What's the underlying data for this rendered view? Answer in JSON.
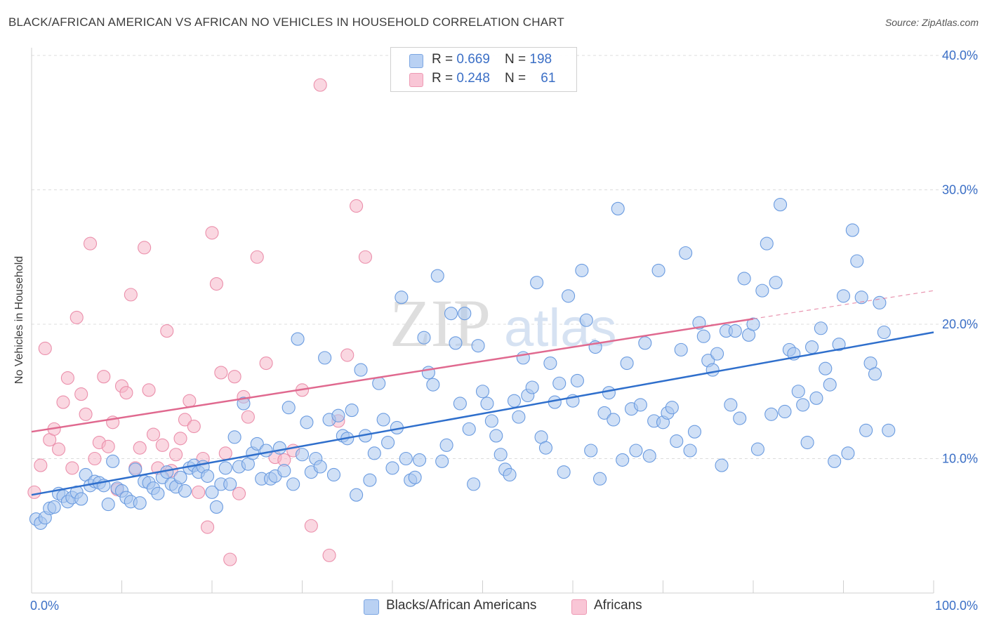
{
  "title": "BLACK/AFRICAN AMERICAN VS AFRICAN NO VEHICLES IN HOUSEHOLD CORRELATION CHART",
  "source": "Source: ZipAtlas.com",
  "watermark": {
    "part1": "ZIP",
    "part2": "atlas"
  },
  "legend": {
    "rows": [
      {
        "r_label": "R = ",
        "r_value": "0.669",
        "n_label": "N = ",
        "n_value": "198"
      },
      {
        "r_label": "R = ",
        "r_value": "0.248",
        "n_label": "N = ",
        "n_value": "61"
      }
    ]
  },
  "colors": {
    "blue_fill": "#a9c6ef",
    "blue_stroke": "#6a9be0",
    "blue_line": "#2f6fcc",
    "pink_fill": "#f6b7c9",
    "pink_stroke": "#eb8fab",
    "pink_line": "#e0698f",
    "tick_text": "#3b6fc6",
    "grid": "#dcdcdc"
  },
  "chart_data": {
    "type": "scatter",
    "xlabel": "",
    "ylabel": "No Vehicles in Household",
    "xlim": [
      0,
      100
    ],
    "ylim": [
      0,
      40
    ],
    "x_ticks": [
      "0.0%",
      "100.0%"
    ],
    "y_ticks": [
      {
        "value": 10,
        "label": "10.0%"
      },
      {
        "value": 20,
        "label": "20.0%"
      },
      {
        "value": 30,
        "label": "30.0%"
      },
      {
        "value": 40,
        "label": "40.0%"
      }
    ],
    "grid": true,
    "legend_position": "top-center",
    "bottom_legend": [
      "Blacks/African Americans",
      "Africans"
    ],
    "series": [
      {
        "name": "Blacks/African Americans",
        "color": "#a9c6ef",
        "regression": {
          "x": [
            0,
            100
          ],
          "y": [
            7.3,
            19.4
          ]
        },
        "points": [
          [
            0.5,
            5.5
          ],
          [
            1,
            5.2
          ],
          [
            1.5,
            5.6
          ],
          [
            2,
            6.3
          ],
          [
            2.5,
            6.4
          ],
          [
            3,
            7.4
          ],
          [
            3.5,
            7.2
          ],
          [
            4,
            6.8
          ],
          [
            4.5,
            7.1
          ],
          [
            5,
            7.5
          ],
          [
            5.5,
            7.0
          ],
          [
            6,
            8.8
          ],
          [
            6.5,
            8.0
          ],
          [
            7,
            8.3
          ],
          [
            7.5,
            8.2
          ],
          [
            8,
            8.0
          ],
          [
            8.5,
            6.6
          ],
          [
            9,
            9.8
          ],
          [
            9.5,
            7.8
          ],
          [
            10,
            7.6
          ],
          [
            10.5,
            7.1
          ],
          [
            11,
            6.8
          ],
          [
            11.5,
            9.2
          ],
          [
            12,
            6.7
          ],
          [
            12.5,
            8.3
          ],
          [
            13,
            8.2
          ],
          [
            13.5,
            7.8
          ],
          [
            14,
            7.4
          ],
          [
            14.5,
            8.6
          ],
          [
            15,
            9.0
          ],
          [
            15.5,
            8.1
          ],
          [
            16,
            7.9
          ],
          [
            16.5,
            8.6
          ],
          [
            17,
            7.6
          ],
          [
            17.5,
            9.3
          ],
          [
            18,
            9.5
          ],
          [
            18.5,
            9.0
          ],
          [
            19,
            9.4
          ],
          [
            19.5,
            8.7
          ],
          [
            20,
            7.5
          ],
          [
            20.5,
            6.4
          ],
          [
            21,
            8.1
          ],
          [
            21.5,
            9.3
          ],
          [
            22,
            8.1
          ],
          [
            22.5,
            11.6
          ],
          [
            23,
            9.4
          ],
          [
            23.5,
            14.1
          ],
          [
            24,
            9.6
          ],
          [
            24.5,
            10.4
          ],
          [
            25,
            11.1
          ],
          [
            25.5,
            8.5
          ],
          [
            26,
            10.6
          ],
          [
            26.5,
            8.5
          ],
          [
            27,
            8.7
          ],
          [
            27.5,
            10.8
          ],
          [
            28,
            9.1
          ],
          [
            28.5,
            13.8
          ],
          [
            29,
            8.1
          ],
          [
            29.5,
            18.9
          ],
          [
            30,
            10.3
          ],
          [
            30.5,
            12.7
          ],
          [
            31,
            9.0
          ],
          [
            31.5,
            10.0
          ],
          [
            32,
            9.4
          ],
          [
            32.5,
            17.5
          ],
          [
            33,
            12.9
          ],
          [
            33.5,
            8.8
          ],
          [
            34,
            13.2
          ],
          [
            34.5,
            11.7
          ],
          [
            35,
            11.5
          ],
          [
            35.5,
            13.6
          ],
          [
            36,
            7.3
          ],
          [
            36.5,
            16.6
          ],
          [
            37,
            11.7
          ],
          [
            37.5,
            8.4
          ],
          [
            38,
            10.4
          ],
          [
            38.5,
            15.6
          ],
          [
            39,
            12.9
          ],
          [
            39.5,
            11.2
          ],
          [
            40,
            9.3
          ],
          [
            40.5,
            12.3
          ],
          [
            41,
            22.0
          ],
          [
            41.5,
            10.0
          ],
          [
            42,
            8.4
          ],
          [
            42.5,
            8.6
          ],
          [
            43,
            9.9
          ],
          [
            43.5,
            19.0
          ],
          [
            44,
            16.4
          ],
          [
            44.5,
            15.5
          ],
          [
            45,
            23.6
          ],
          [
            45.5,
            9.8
          ],
          [
            46,
            11.0
          ],
          [
            46.5,
            20.8
          ],
          [
            47,
            18.6
          ],
          [
            47.5,
            14.1
          ],
          [
            48,
            20.8
          ],
          [
            48.5,
            12.2
          ],
          [
            49,
            8.1
          ],
          [
            49.5,
            18.4
          ],
          [
            50,
            15.0
          ],
          [
            50.5,
            14.1
          ],
          [
            51,
            12.8
          ],
          [
            51.5,
            11.7
          ],
          [
            52,
            10.3
          ],
          [
            52.5,
            9.2
          ],
          [
            53,
            8.8
          ],
          [
            53.5,
            14.3
          ],
          [
            54,
            13.1
          ],
          [
            54.5,
            17.5
          ],
          [
            55,
            14.7
          ],
          [
            55.5,
            15.3
          ],
          [
            56,
            23.1
          ],
          [
            56.5,
            11.6
          ],
          [
            57,
            10.8
          ],
          [
            57.5,
            17.1
          ],
          [
            58,
            14.2
          ],
          [
            58.5,
            15.6
          ],
          [
            59,
            9.0
          ],
          [
            59.5,
            22.1
          ],
          [
            60,
            14.3
          ],
          [
            60.5,
            15.8
          ],
          [
            61,
            24.0
          ],
          [
            61.5,
            20.3
          ],
          [
            62,
            10.6
          ],
          [
            62.5,
            18.3
          ],
          [
            63,
            8.5
          ],
          [
            63.5,
            13.4
          ],
          [
            64,
            14.9
          ],
          [
            64.5,
            12.9
          ],
          [
            65,
            28.6
          ],
          [
            65.5,
            9.9
          ],
          [
            66,
            17.1
          ],
          [
            66.5,
            13.7
          ],
          [
            67,
            10.6
          ],
          [
            67.5,
            14.0
          ],
          [
            68,
            18.6
          ],
          [
            68.5,
            10.2
          ],
          [
            69,
            12.8
          ],
          [
            69.5,
            24.0
          ],
          [
            70,
            12.7
          ],
          [
            70.5,
            13.4
          ],
          [
            71,
            13.8
          ],
          [
            71.5,
            11.3
          ],
          [
            72,
            18.1
          ],
          [
            72.5,
            25.3
          ],
          [
            73,
            10.6
          ],
          [
            73.5,
            12.0
          ],
          [
            74,
            20.1
          ],
          [
            74.5,
            19.1
          ],
          [
            75,
            17.3
          ],
          [
            75.5,
            16.6
          ],
          [
            76,
            17.8
          ],
          [
            76.5,
            9.5
          ],
          [
            77,
            19.5
          ],
          [
            77.5,
            14.0
          ],
          [
            78,
            19.5
          ],
          [
            78.5,
            13.0
          ],
          [
            79,
            23.4
          ],
          [
            79.5,
            19.2
          ],
          [
            80,
            20.0
          ],
          [
            80.5,
            10.7
          ],
          [
            81,
            22.5
          ],
          [
            81.5,
            26.0
          ],
          [
            82,
            13.3
          ],
          [
            82.5,
            23.1
          ],
          [
            83,
            28.9
          ],
          [
            83.5,
            13.5
          ],
          [
            84,
            18.1
          ],
          [
            84.5,
            17.8
          ],
          [
            85,
            15.0
          ],
          [
            85.5,
            14.0
          ],
          [
            86,
            11.2
          ],
          [
            86.5,
            18.3
          ],
          [
            87,
            14.5
          ],
          [
            87.5,
            19.7
          ],
          [
            88,
            16.7
          ],
          [
            88.5,
            15.5
          ],
          [
            89,
            9.8
          ],
          [
            89.5,
            18.5
          ],
          [
            90,
            22.1
          ],
          [
            90.5,
            10.4
          ],
          [
            91,
            27.0
          ],
          [
            91.5,
            24.7
          ],
          [
            92,
            22.0
          ],
          [
            92.5,
            12.1
          ],
          [
            93,
            17.1
          ],
          [
            93.5,
            16.3
          ],
          [
            94,
            21.6
          ],
          [
            94.5,
            19.4
          ],
          [
            95,
            12.1
          ]
        ]
      },
      {
        "name": "Africans",
        "color": "#f6b7c9",
        "regression": {
          "x": [
            0,
            80
          ],
          "y": [
            12.0,
            20.4
          ]
        },
        "points": [
          [
            0.3,
            7.5
          ],
          [
            1,
            9.5
          ],
          [
            1.5,
            18.2
          ],
          [
            2,
            11.4
          ],
          [
            2.5,
            12.2
          ],
          [
            3,
            10.7
          ],
          [
            3.5,
            14.2
          ],
          [
            4,
            16.0
          ],
          [
            4.5,
            9.3
          ],
          [
            5,
            20.5
          ],
          [
            5.5,
            14.8
          ],
          [
            6,
            13.3
          ],
          [
            6.5,
            26.0
          ],
          [
            7,
            10.0
          ],
          [
            7.5,
            11.2
          ],
          [
            8,
            16.1
          ],
          [
            8.5,
            10.9
          ],
          [
            9,
            12.7
          ],
          [
            9.5,
            7.7
          ],
          [
            10,
            15.4
          ],
          [
            10.5,
            14.9
          ],
          [
            11,
            22.2
          ],
          [
            11.5,
            9.3
          ],
          [
            12,
            10.8
          ],
          [
            12.5,
            25.7
          ],
          [
            13,
            15.1
          ],
          [
            13.5,
            11.8
          ],
          [
            14,
            9.3
          ],
          [
            14.5,
            11.0
          ],
          [
            15,
            19.5
          ],
          [
            15.5,
            9.1
          ],
          [
            16,
            10.3
          ],
          [
            16.5,
            11.5
          ],
          [
            17,
            12.9
          ],
          [
            17.5,
            14.3
          ],
          [
            18,
            12.4
          ],
          [
            18.5,
            7.5
          ],
          [
            19,
            10.0
          ],
          [
            19.5,
            4.9
          ],
          [
            20,
            26.8
          ],
          [
            20.5,
            23.0
          ],
          [
            21,
            16.4
          ],
          [
            21.5,
            10.4
          ],
          [
            22,
            2.5
          ],
          [
            22.5,
            16.1
          ],
          [
            23,
            7.4
          ],
          [
            23.5,
            14.6
          ],
          [
            24,
            13.1
          ],
          [
            25,
            25.0
          ],
          [
            26,
            17.1
          ],
          [
            27,
            10.1
          ],
          [
            28,
            9.9
          ],
          [
            29,
            10.6
          ],
          [
            30,
            15.1
          ],
          [
            31,
            5.0
          ],
          [
            32,
            37.8
          ],
          [
            33,
            2.8
          ],
          [
            34,
            12.8
          ],
          [
            35,
            17.7
          ],
          [
            36,
            28.8
          ],
          [
            37,
            25.0
          ]
        ]
      }
    ]
  }
}
